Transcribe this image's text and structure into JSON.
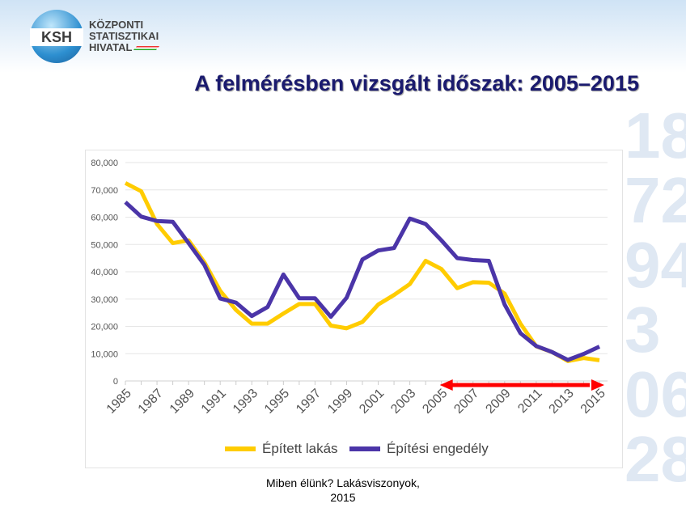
{
  "logo": {
    "abbr": "KSH",
    "lines": [
      "KÖZPONTI",
      "STATISZTIKAI",
      "HIVATAL"
    ]
  },
  "background_numbers": "18\n72\n94\n3\n06\n28",
  "title": "A felmérésben vizsgált időszak: 2005–2015",
  "caption": {
    "line1": "Miben élünk? Lakásviszonyok,",
    "line2": "2015"
  },
  "chart_data": {
    "type": "line",
    "title": "",
    "xlabel": "",
    "ylabel": "",
    "x": [
      1985,
      1986,
      1987,
      1988,
      1989,
      1990,
      1991,
      1992,
      1993,
      1994,
      1995,
      1996,
      1997,
      1998,
      1999,
      2000,
      2001,
      2002,
      2003,
      2004,
      2005,
      2006,
      2007,
      2008,
      2009,
      2010,
      2011,
      2012,
      2013,
      2014,
      2015
    ],
    "x_tick_labels": [
      "1985",
      "1987",
      "1989",
      "1991",
      "1993",
      "1995",
      "1997",
      "1999",
      "2001",
      "2003",
      "2005",
      "2007",
      "2009",
      "2011",
      "2013",
      "2015"
    ],
    "ylim": [
      0,
      80000
    ],
    "y_tick_labels": [
      "0",
      "10,000",
      "20,000",
      "30,000",
      "40,000",
      "50,000",
      "60,000",
      "70,000",
      "80,000"
    ],
    "grid": true,
    "legend_position": "bottom",
    "series": [
      {
        "name": "Épített lakás",
        "color": "#ffcc00",
        "values": [
          72500,
          69500,
          57500,
          50500,
          51500,
          43500,
          33000,
          26000,
          21000,
          21000,
          24700,
          28200,
          28200,
          20300,
          19300,
          21600,
          28000,
          31500,
          35500,
          44000,
          41000,
          34000,
          36200,
          36000,
          32000,
          21000,
          12700,
          10600,
          7300,
          8400,
          7600
        ]
      },
      {
        "name": "Építési engedély",
        "color": "#4b35a8",
        "values": [
          65500,
          60200,
          58600,
          58300,
          50500,
          42500,
          30200,
          28700,
          23800,
          27100,
          39000,
          30300,
          30300,
          23500,
          30500,
          44500,
          47800,
          48700,
          59500,
          57500,
          51500,
          45000,
          44300,
          44000,
          28000,
          17500,
          12800,
          10600,
          7700,
          9900,
          12600
        ]
      }
    ],
    "annotations": [
      {
        "type": "double-arrow",
        "from": 2005,
        "to": 2015,
        "color": "#ff0000"
      }
    ]
  }
}
